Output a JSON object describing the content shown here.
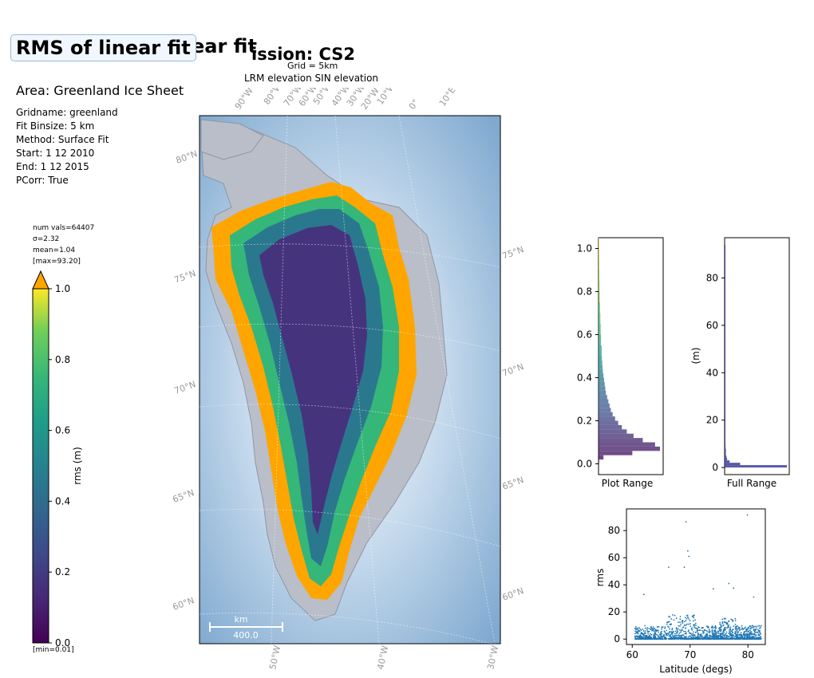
{
  "header": {
    "title": "RMS of linear fit",
    "title_ghost": "ear fit",
    "mission": "ission: CS2",
    "grid": "Grid = 5km",
    "modes": "LRM elevation SIN elevation"
  },
  "info": {
    "area": "Area: Greenland Ice Sheet",
    "lines": [
      "Gridname: greenland",
      "Fit Binsize: 5 km",
      "Method: Surface Fit",
      "Start: 1 12 2010",
      "End: 1 12 2015",
      "PCorr: True"
    ]
  },
  "stats": {
    "num_vals": "num vals=64407",
    "sigma": "σ=2.32",
    "mean": "mean=1.04",
    "max": "[max=93.20]",
    "min": "[min=0.01]"
  },
  "colorbar": {
    "label": "rms (m)",
    "ticks": [
      "0.0",
      "0.2",
      "0.4",
      "0.6",
      "0.8",
      "1.0"
    ],
    "over_color": "#ffa500"
  },
  "map": {
    "lon_top": [
      "90°W",
      "80°W",
      "70°W",
      "60°W",
      "50°W",
      "40°W",
      "30°W",
      "20°W",
      "10°W",
      "0°",
      "10°E"
    ],
    "lon_bottom": [
      "50°W",
      "40°W",
      "30°W"
    ],
    "lat_left": [
      "80°N",
      "75°N",
      "70°N",
      "65°N",
      "60°N"
    ],
    "lat_right": [
      "75°N",
      "70°N",
      "65°N",
      "60°N"
    ],
    "scale_unit": "km",
    "scale_value": "400.0",
    "ocean_color": "#7fa9cf",
    "land_color": "#b9bec9",
    "ice_colors": [
      "#440154",
      "#3b528b",
      "#21918c",
      "#5ec962",
      "#fde725",
      "#ffa500"
    ]
  },
  "chart_data": [
    {
      "type": "bar",
      "title": "",
      "xlabel": "Plot Range",
      "ylabel": "",
      "orientation": "horizontal",
      "ylim": [
        -0.05,
        1.05
      ],
      "yticks": [
        "0.0",
        "0.2",
        "0.4",
        "0.6",
        "0.8",
        "1.0"
      ],
      "bins": [
        0.0,
        0.02,
        0.04,
        0.06,
        0.08,
        0.1,
        0.12,
        0.14,
        0.16,
        0.18,
        0.2,
        0.22,
        0.24,
        0.26,
        0.28,
        0.3,
        0.32,
        0.34,
        0.36,
        0.38,
        0.4,
        0.42,
        0.44,
        0.46,
        0.48,
        0.5,
        0.55,
        0.6,
        0.65,
        0.7,
        0.75,
        0.8,
        0.85,
        0.9,
        0.95,
        1.0
      ],
      "values": [
        0.01,
        0.08,
        0.55,
        1.0,
        0.92,
        0.72,
        0.57,
        0.46,
        0.38,
        0.32,
        0.27,
        0.23,
        0.2,
        0.18,
        0.16,
        0.14,
        0.12,
        0.11,
        0.1,
        0.09,
        0.08,
        0.07,
        0.065,
        0.06,
        0.055,
        0.05,
        0.04,
        0.035,
        0.03,
        0.025,
        0.02,
        0.017,
        0.014,
        0.012,
        0.01,
        0.008
      ]
    },
    {
      "type": "bar",
      "title": "",
      "xlabel": "Full Range",
      "ylabel": "(m)",
      "orientation": "horizontal",
      "ylim": [
        -3,
        97
      ],
      "yticks": [
        "0",
        "20",
        "40",
        "60",
        "80"
      ],
      "bins": [
        0,
        1,
        2,
        3,
        4,
        5,
        6,
        8,
        10,
        20,
        40,
        60,
        80,
        93
      ],
      "values": [
        1.0,
        0.25,
        0.08,
        0.04,
        0.03,
        0.02,
        0.02,
        0.015,
        0.01,
        0.005,
        0.003,
        0.002,
        0.001,
        0.001
      ]
    },
    {
      "type": "scatter",
      "title": "",
      "xlabel": "Latitude (degs)",
      "ylabel": "rms",
      "xlim": [
        59,
        83
      ],
      "ylim": [
        -4,
        96
      ],
      "xticks": [
        "60",
        "70",
        "80"
      ],
      "yticks": [
        "0",
        "20",
        "40",
        "60",
        "80"
      ],
      "outliers": [
        {
          "x": 69.3,
          "y": 86.5
        },
        {
          "x": 69.6,
          "y": 65
        },
        {
          "x": 69.8,
          "y": 61
        },
        {
          "x": 69.0,
          "y": 53
        },
        {
          "x": 66.3,
          "y": 53
        },
        {
          "x": 76.7,
          "y": 41
        },
        {
          "x": 77.5,
          "y": 37.5
        },
        {
          "x": 81.0,
          "y": 31
        },
        {
          "x": 62.0,
          "y": 33
        },
        {
          "x": 74.0,
          "y": 37
        },
        {
          "x": 79.9,
          "y": 91.5
        }
      ],
      "color": "#1f77b4"
    }
  ]
}
